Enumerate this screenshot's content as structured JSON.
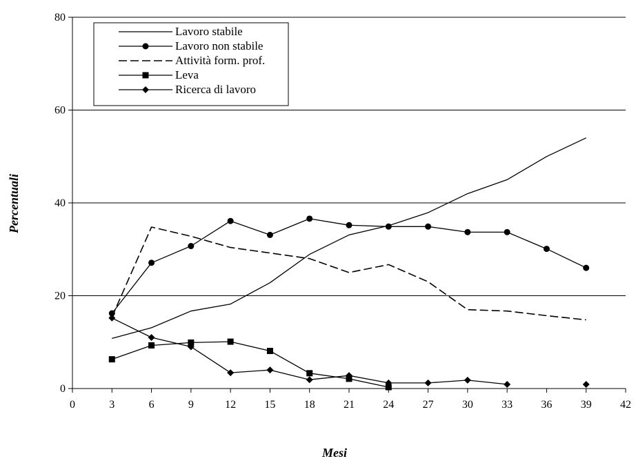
{
  "chart_data": {
    "type": "line",
    "title": "",
    "xlabel": "Mesi",
    "ylabel": "Percentuali",
    "xlim": [
      0,
      42
    ],
    "ylim": [
      0,
      80
    ],
    "x_ticks": [
      "0",
      "3",
      "6",
      "9",
      "12",
      "15",
      "18",
      "21",
      "24",
      "27",
      "30",
      "33",
      "36",
      "39",
      "42"
    ],
    "y_ticks": [
      "0",
      "20",
      "40",
      "60",
      "80"
    ],
    "grid": "horizontal",
    "legend_position": "top-left",
    "series": [
      {
        "name": "Lavoro stabile",
        "style": "solid",
        "marker": "none",
        "points": [
          [
            3,
            10.8
          ],
          [
            6,
            13.1
          ],
          [
            9,
            16.7
          ],
          [
            12,
            18.2
          ],
          [
            15,
            22.8
          ],
          [
            18,
            28.9
          ],
          [
            21,
            33.1
          ],
          [
            24,
            35.1
          ],
          [
            27,
            37.9
          ],
          [
            30,
            42.0
          ],
          [
            33,
            45.0
          ],
          [
            36,
            50.0
          ],
          [
            39,
            54.0
          ]
        ]
      },
      {
        "name": "Lavoro non stabile",
        "style": "solid",
        "marker": "circle",
        "points": [
          [
            3,
            16.2
          ],
          [
            6,
            27.1
          ],
          [
            9,
            30.7
          ],
          [
            12,
            36.1
          ],
          [
            15,
            33.1
          ],
          [
            18,
            36.6
          ],
          [
            21,
            35.2
          ],
          [
            24,
            34.9
          ],
          [
            27,
            34.9
          ],
          [
            30,
            33.7
          ],
          [
            33,
            33.7
          ],
          [
            36,
            30.1
          ],
          [
            39,
            26.0
          ]
        ]
      },
      {
        "name": "Attività form. prof.",
        "style": "dashed",
        "marker": "none",
        "points": [
          [
            3,
            15.4
          ],
          [
            6,
            34.8
          ],
          [
            9,
            32.8
          ],
          [
            12,
            30.4
          ],
          [
            15,
            29.2
          ],
          [
            18,
            28.0
          ],
          [
            21,
            25.0
          ],
          [
            24,
            26.7
          ],
          [
            27,
            23.0
          ],
          [
            30,
            17.0
          ],
          [
            33,
            16.7
          ],
          [
            36,
            15.7
          ],
          [
            39,
            14.8
          ]
        ]
      },
      {
        "name": "Leva",
        "style": "solid",
        "marker": "square",
        "points": [
          [
            3,
            6.3
          ],
          [
            6,
            9.3
          ],
          [
            9,
            9.9
          ],
          [
            12,
            10.1
          ],
          [
            15,
            8.1
          ],
          [
            18,
            3.3
          ],
          [
            21,
            2.1
          ],
          [
            24,
            0.3
          ]
        ]
      },
      {
        "name": "Ricerca di lavoro",
        "style": "solid",
        "marker": "diamond",
        "points": [
          [
            3,
            15.2
          ],
          [
            6,
            11.0
          ],
          [
            9,
            9.0
          ],
          [
            12,
            3.4
          ],
          [
            15,
            4.0
          ],
          [
            18,
            1.9
          ],
          [
            21,
            2.8
          ],
          [
            24,
            1.2
          ],
          [
            27,
            1.2
          ],
          [
            30,
            1.8
          ],
          [
            33,
            0.9
          ],
          [
            39,
            0.9
          ]
        ],
        "segment_breaks_after_x": [
          33
        ]
      }
    ]
  }
}
